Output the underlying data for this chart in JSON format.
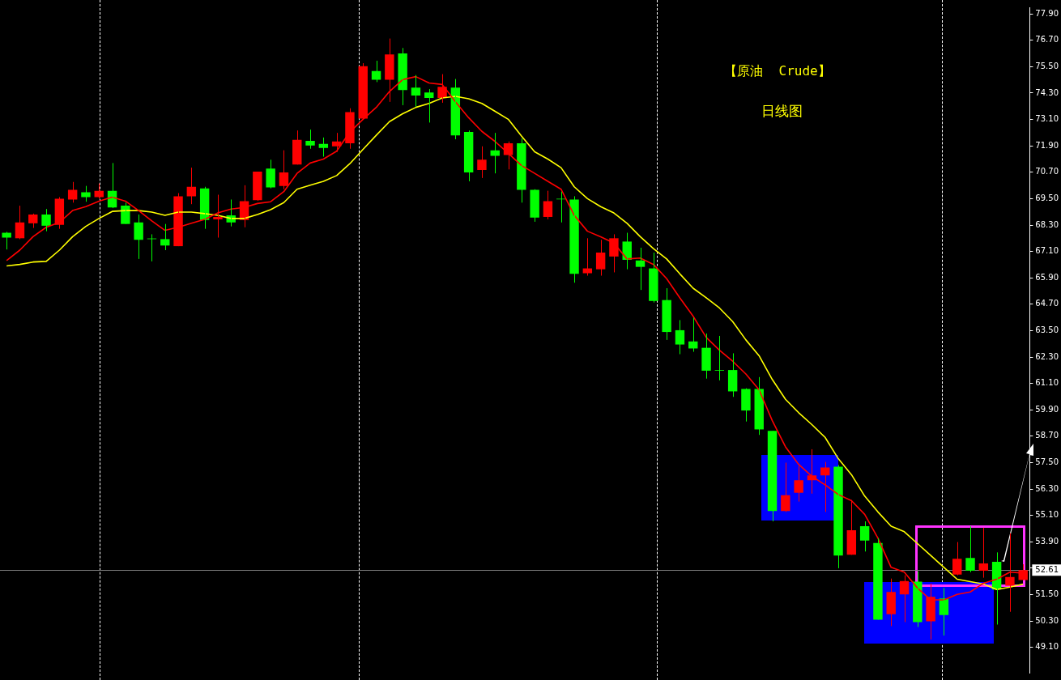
{
  "chart_data": {
    "type": "candlestick",
    "title": "【原油  Crude】",
    "subtitle": "日线图",
    "categories": [
      null,
      null,
      null,
      null,
      null,
      null,
      null,
      null,
      null,
      null,
      null,
      null,
      null,
      null,
      null,
      null,
      null,
      null,
      null,
      null,
      null,
      null,
      null,
      null,
      null,
      null,
      null,
      null,
      null,
      null,
      null,
      null,
      null,
      null,
      null,
      null,
      null,
      null,
      null,
      null,
      null,
      null,
      null,
      null,
      null,
      null,
      null,
      null,
      null,
      null,
      null,
      null,
      null,
      null,
      null,
      null,
      null,
      null,
      null,
      null,
      null,
      null,
      null,
      null,
      null,
      null,
      null,
      null,
      null,
      null,
      null,
      null,
      null,
      null,
      null,
      null,
      null,
      null
    ],
    "ohlc": [
      [
        67.95,
        67.99,
        67.19,
        67.73
      ],
      [
        67.7,
        69.18,
        67.66,
        68.42
      ],
      [
        68.38,
        68.82,
        68.17,
        68.78
      ],
      [
        68.78,
        69.03,
        68.02,
        68.27
      ],
      [
        68.31,
        69.57,
        68.13,
        69.5
      ],
      [
        69.46,
        70.26,
        69.32,
        69.9
      ],
      [
        69.79,
        70.08,
        69.36,
        69.57
      ],
      [
        69.57,
        70.19,
        69.5,
        69.86
      ],
      [
        69.86,
        71.12,
        69.07,
        69.1
      ],
      [
        69.18,
        69.32,
        68.35,
        68.35
      ],
      [
        68.42,
        68.78,
        66.76,
        67.63
      ],
      [
        67.69,
        67.88,
        66.65,
        67.66
      ],
      [
        67.66,
        68.35,
        67.16,
        67.37
      ],
      [
        67.34,
        69.75,
        67.34,
        69.61
      ],
      [
        69.61,
        70.91,
        69.25,
        70.04
      ],
      [
        69.97,
        70.04,
        68.13,
        68.53
      ],
      [
        68.56,
        69.68,
        67.73,
        68.67
      ],
      [
        68.74,
        69.46,
        68.24,
        68.42
      ],
      [
        68.53,
        70.11,
        68.2,
        69.39
      ],
      [
        69.43,
        70.73,
        69.4,
        70.73
      ],
      [
        70.87,
        71.27,
        69.97,
        70.01
      ],
      [
        70.08,
        71.7,
        69.93,
        70.69
      ],
      [
        71.05,
        72.6,
        71.05,
        72.17
      ],
      [
        72.13,
        72.64,
        71.77,
        71.92
      ],
      [
        71.99,
        72.28,
        71.41,
        71.81
      ],
      [
        71.88,
        72.49,
        71.63,
        72.1
      ],
      [
        72.02,
        73.61,
        71.77,
        73.43
      ],
      [
        73.14,
        75.66,
        73.1,
        75.52
      ],
      [
        75.3,
        75.77,
        74.8,
        74.91
      ],
      [
        74.91,
        76.78,
        73.9,
        76.06
      ],
      [
        76.1,
        76.35,
        73.75,
        74.44
      ],
      [
        74.55,
        75.12,
        73.68,
        74.19
      ],
      [
        74.33,
        74.48,
        72.96,
        74.08
      ],
      [
        74.08,
        75.16,
        73.86,
        74.58
      ],
      [
        74.55,
        74.94,
        72.2,
        72.38
      ],
      [
        72.53,
        72.6,
        70.29,
        70.69
      ],
      [
        70.8,
        71.88,
        70.44,
        71.27
      ],
      [
        71.7,
        72.49,
        70.65,
        71.45
      ],
      [
        71.48,
        72.1,
        70.83,
        72.02
      ],
      [
        72.02,
        72.24,
        69.32,
        69.9
      ],
      [
        69.9,
        69.93,
        68.45,
        68.64
      ],
      [
        68.67,
        69.86,
        68.56,
        69.39
      ],
      [
        69.5,
        69.82,
        68.42,
        69.47
      ],
      [
        69.46,
        69.61,
        65.68,
        66.08
      ],
      [
        66.11,
        67.7,
        66.0,
        66.33
      ],
      [
        66.29,
        67.63,
        66.0,
        67.05
      ],
      [
        66.87,
        67.88,
        66.15,
        67.7
      ],
      [
        67.55,
        67.95,
        66.29,
        66.72
      ],
      [
        66.69,
        67.27,
        65.35,
        66.4
      ],
      [
        66.33,
        67.05,
        64.78,
        64.85
      ],
      [
        64.89,
        65.43,
        63.08,
        63.44
      ],
      [
        63.52,
        63.98,
        62.43,
        62.87
      ],
      [
        63.01,
        64.09,
        62.54,
        62.69
      ],
      [
        62.72,
        63.37,
        61.32,
        61.68
      ],
      [
        61.71,
        63.26,
        61.24,
        61.68
      ],
      [
        61.71,
        62.47,
        60.49,
        60.74
      ],
      [
        60.85,
        60.88,
        59.37,
        59.87
      ],
      [
        60.85,
        61.39,
        58.76,
        59.01
      ],
      [
        58.94,
        58.94,
        54.83,
        55.3
      ],
      [
        55.3,
        57.5,
        55.26,
        56.02
      ],
      [
        56.13,
        57.35,
        55.73,
        56.7
      ],
      [
        56.7,
        58.11,
        56.09,
        56.92
      ],
      [
        56.92,
        57.53,
        55.26,
        57.28
      ],
      [
        57.32,
        57.39,
        52.7,
        53.28
      ],
      [
        53.31,
        55.8,
        53.31,
        54.43
      ],
      [
        54.61,
        54.83,
        53.46,
        53.96
      ],
      [
        53.85,
        54.07,
        50.36,
        50.36
      ],
      [
        50.61,
        52.23,
        50.07,
        51.62
      ],
      [
        51.51,
        52.38,
        50.25,
        52.12
      ],
      [
        52.09,
        52.56,
        50.03,
        50.25
      ],
      [
        50.29,
        52.0,
        49.46,
        51.4
      ],
      [
        51.33,
        51.8,
        49.64,
        50.57
      ],
      [
        52.41,
        53.89,
        52.38,
        53.13
      ],
      [
        53.17,
        54.61,
        52.52,
        52.59
      ],
      [
        52.59,
        54.54,
        52.27,
        52.92
      ],
      [
        52.99,
        53.42,
        50.14,
        51.73
      ],
      [
        51.91,
        54.29,
        50.72,
        52.3
      ],
      [
        52.16,
        52.88,
        52.16,
        52.61
      ]
    ],
    "colors": [
      "#00ff00",
      "#ff0000",
      "#ff0000",
      "#00ff00",
      "#ff0000",
      "#ff0000",
      "#00ff00",
      "#ff0000",
      "#00ff00",
      "#00ff00",
      "#00ff00",
      "#00ff00",
      "#00ff00",
      "#ff0000",
      "#ff0000",
      "#00ff00",
      "#ff0000",
      "#00ff00",
      "#ff0000",
      "#ff0000",
      "#00ff00",
      "#ff0000",
      "#ff0000",
      "#00ff00",
      "#00ff00",
      "#ff0000",
      "#ff0000",
      "#ff0000",
      "#00ff00",
      "#ff0000",
      "#00ff00",
      "#00ff00",
      "#00ff00",
      "#ff0000",
      "#00ff00",
      "#00ff00",
      "#ff0000",
      "#00ff00",
      "#ff0000",
      "#00ff00",
      "#00ff00",
      "#ff0000",
      "#00ff00",
      "#00ff00",
      "#ff0000",
      "#ff0000",
      "#ff0000",
      "#00ff00",
      "#00ff00",
      "#00ff00",
      "#00ff00",
      "#00ff00",
      "#00ff00",
      "#00ff00",
      "#00ff00",
      "#00ff00",
      "#00ff00",
      "#00ff00",
      "#00ff00",
      "#ff0000",
      "#ff0000",
      "#ff0000",
      "#ff0000",
      "#00ff00",
      "#ff0000",
      "#00ff00",
      "#00ff00",
      "#ff0000",
      "#ff0000",
      "#00ff00",
      "#ff0000",
      "#00ff00",
      "#ff0000",
      "#00ff00",
      "#ff0000",
      "#00ff00",
      "#ff0000",
      "#ff0000"
    ],
    "series": [
      {
        "type": "line",
        "color": "#ff0000",
        "values": [
          66.69,
          67.16,
          67.77,
          68.2,
          68.42,
          68.96,
          69.14,
          69.39,
          69.57,
          69.39,
          68.96,
          68.49,
          68.06,
          68.2,
          68.38,
          68.56,
          68.85,
          69.03,
          69.1,
          69.28,
          69.36,
          69.82,
          70.65,
          71.12,
          71.3,
          71.66,
          72.53,
          73.11,
          73.65,
          74.37,
          74.91,
          75.05,
          74.76,
          74.69,
          73.9,
          73.18,
          72.56,
          72.1,
          71.56,
          71.01,
          70.65,
          70.29,
          69.93,
          68.74,
          68.02,
          67.77,
          67.48,
          66.76,
          66.8,
          66.51,
          65.86,
          64.99,
          64.16,
          63.19,
          62.61,
          62.11,
          61.53,
          60.81,
          59.41,
          58.22,
          57.42,
          56.88,
          56.49,
          56.05,
          55.77,
          55.15,
          54.07,
          52.74,
          52.52,
          51.8,
          51.26,
          51.26,
          51.51,
          51.62,
          52.02,
          52.2,
          52.52,
          52.48
        ]
      },
      {
        "type": "line",
        "color": "#ffff00",
        "values": [
          66.44,
          66.51,
          66.62,
          66.65,
          67.16,
          67.77,
          68.24,
          68.6,
          68.92,
          68.96,
          68.96,
          68.89,
          68.74,
          68.89,
          68.89,
          68.82,
          68.74,
          68.6,
          68.6,
          68.78,
          69.0,
          69.32,
          69.93,
          70.11,
          70.29,
          70.55,
          71.09,
          71.74,
          72.38,
          73.0,
          73.36,
          73.65,
          73.83,
          74.08,
          74.15,
          74.04,
          73.83,
          73.47,
          73.11,
          72.35,
          71.63,
          71.3,
          70.91,
          70.04,
          69.5,
          69.14,
          68.85,
          68.38,
          67.77,
          67.23,
          66.76,
          66.08,
          65.43,
          64.99,
          64.53,
          63.91,
          63.08,
          62.36,
          61.28,
          60.38,
          59.77,
          59.23,
          58.65,
          57.68,
          56.95,
          55.98,
          55.26,
          54.61,
          54.36,
          53.82,
          53.28,
          52.74,
          52.2,
          52.09,
          51.98,
          51.73,
          51.84,
          51.98
        ]
      }
    ],
    "ylim": [
      47.95,
      78.2
    ],
    "yticks": [
      {
        "value": 49.1,
        "label": "49.10"
      },
      {
        "value": 50.3,
        "label": "50.30"
      },
      {
        "value": 51.5,
        "label": "51.50"
      },
      {
        "value": 52.7,
        "label": null
      },
      {
        "value": 53.9,
        "label": "53.90"
      },
      {
        "value": 55.1,
        "label": "55.10"
      },
      {
        "value": 56.3,
        "label": "56.30"
      },
      {
        "value": 57.5,
        "label": "57.50"
      },
      {
        "value": 58.7,
        "label": "58.70"
      },
      {
        "value": 59.9,
        "label": "59.90"
      },
      {
        "value": 61.1,
        "label": "61.10"
      },
      {
        "value": 62.3,
        "label": "62.30"
      },
      {
        "value": 63.5,
        "label": "63.50"
      },
      {
        "value": 64.7,
        "label": "64.70"
      },
      {
        "value": 65.9,
        "label": "65.90"
      },
      {
        "value": 67.1,
        "label": "67.10"
      },
      {
        "value": 68.3,
        "label": "68.30"
      },
      {
        "value": 69.5,
        "label": "69.50"
      },
      {
        "value": 70.7,
        "label": "70.70"
      },
      {
        "value": 71.9,
        "label": "71.90"
      },
      {
        "value": 73.1,
        "label": "73.10"
      },
      {
        "value": 74.3,
        "label": "74.30"
      },
      {
        "value": 75.5,
        "label": "75.50"
      },
      {
        "value": 76.7,
        "label": "76.70"
      },
      {
        "value": 77.9,
        "label": "77.90"
      }
    ],
    "ref_lines": [
      {
        "axis": "y",
        "value": 52.61,
        "label": "52.61",
        "color": "#808080"
      }
    ],
    "tick_labels": "y"
  }
}
